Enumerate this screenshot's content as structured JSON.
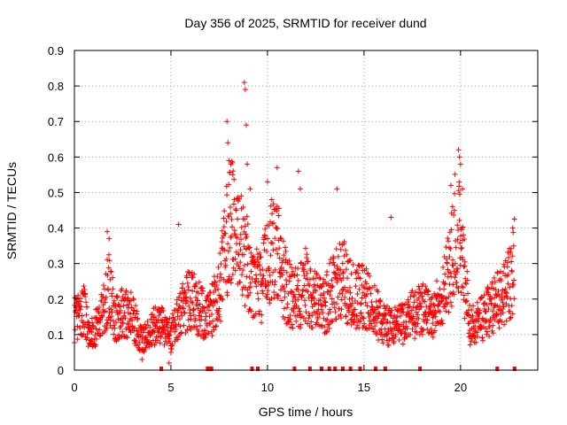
{
  "chart_data": {
    "type": "scatter",
    "title": "Day 356 of 2025, SRMTID for receiver dund",
    "xlabel": "GPS time / hours",
    "ylabel": "SRMTID / TECUs",
    "xlim": [
      0,
      24
    ],
    "ylim": [
      0,
      0.9
    ],
    "xticks": [
      "0",
      "5",
      "10",
      "15",
      "20"
    ],
    "xtick_values": [
      0,
      5,
      10,
      15,
      20
    ],
    "yticks": [
      "0",
      "0.1",
      "0.2",
      "0.3",
      "0.4",
      "0.5",
      "0.6",
      "0.7",
      "0.8",
      "0.9"
    ],
    "ytick_values": [
      0,
      0.1,
      0.2,
      0.3,
      0.4,
      0.5,
      0.6,
      0.7,
      0.8,
      0.9
    ],
    "grid": true,
    "marker": "+",
    "color": "#ff0000",
    "series": [
      {
        "name": "SRMTID",
        "profile": [
          [
            0.0,
            0.14
          ],
          [
            0.5,
            0.17
          ],
          [
            0.8,
            0.09
          ],
          [
            1.2,
            0.13
          ],
          [
            1.6,
            0.19
          ],
          [
            1.8,
            0.24
          ],
          [
            2.1,
            0.14
          ],
          [
            2.5,
            0.16
          ],
          [
            3.0,
            0.15
          ],
          [
            3.5,
            0.08
          ],
          [
            3.8,
            0.1
          ],
          [
            4.2,
            0.13
          ],
          [
            4.6,
            0.12
          ],
          [
            5.0,
            0.1
          ],
          [
            5.5,
            0.17
          ],
          [
            6.0,
            0.2
          ],
          [
            6.5,
            0.17
          ],
          [
            7.0,
            0.15
          ],
          [
            7.5,
            0.22
          ],
          [
            7.8,
            0.34
          ],
          [
            8.1,
            0.42
          ],
          [
            8.5,
            0.37
          ],
          [
            8.9,
            0.31
          ],
          [
            9.3,
            0.24
          ],
          [
            9.7,
            0.23
          ],
          [
            10.2,
            0.36
          ],
          [
            10.6,
            0.32
          ],
          [
            11.0,
            0.22
          ],
          [
            11.5,
            0.2
          ],
          [
            12.0,
            0.24
          ],
          [
            12.5,
            0.19
          ],
          [
            13.0,
            0.18
          ],
          [
            13.5,
            0.26
          ],
          [
            14.0,
            0.25
          ],
          [
            14.5,
            0.2
          ],
          [
            15.0,
            0.21
          ],
          [
            15.5,
            0.17
          ],
          [
            16.0,
            0.13
          ],
          [
            16.5,
            0.12
          ],
          [
            17.0,
            0.13
          ],
          [
            17.5,
            0.16
          ],
          [
            18.0,
            0.17
          ],
          [
            18.5,
            0.16
          ],
          [
            19.0,
            0.19
          ],
          [
            19.5,
            0.3
          ],
          [
            19.8,
            0.43
          ],
          [
            20.1,
            0.3
          ],
          [
            20.5,
            0.12
          ],
          [
            21.0,
            0.14
          ],
          [
            21.5,
            0.17
          ],
          [
            22.0,
            0.2
          ],
          [
            22.5,
            0.25
          ],
          [
            22.8,
            0.3
          ]
        ],
        "spikes": [
          [
            1.7,
            0.39
          ],
          [
            1.8,
            0.37
          ],
          [
            5.4,
            0.41
          ],
          [
            7.9,
            0.7
          ],
          [
            7.95,
            0.64
          ],
          [
            8.0,
            0.59
          ],
          [
            8.1,
            0.58
          ],
          [
            8.2,
            0.55
          ],
          [
            8.8,
            0.81
          ],
          [
            8.85,
            0.79
          ],
          [
            8.9,
            0.69
          ],
          [
            8.95,
            0.58
          ],
          [
            9.1,
            0.51
          ],
          [
            10.0,
            0.53
          ],
          [
            10.5,
            0.57
          ],
          [
            11.6,
            0.56
          ],
          [
            11.7,
            0.51
          ],
          [
            13.6,
            0.51
          ],
          [
            16.4,
            0.43
          ],
          [
            19.5,
            0.52
          ],
          [
            19.9,
            0.62
          ],
          [
            19.95,
            0.6
          ],
          [
            20.0,
            0.58
          ],
          [
            20.1,
            0.51
          ],
          [
            22.7,
            0.4
          ],
          [
            3.5,
            0.03
          ],
          [
            5.0,
            0.05
          ],
          [
            4.9,
            0.02
          ]
        ]
      }
    ],
    "gap_markers_x": [
      4.5,
      6.9,
      7.0,
      7.1,
      9.2,
      9.5,
      11.4,
      12.2,
      12.8,
      13.2,
      13.5,
      13.9,
      14.3,
      14.8,
      15.6,
      16.1,
      17.9,
      21.9,
      22.8
    ]
  }
}
